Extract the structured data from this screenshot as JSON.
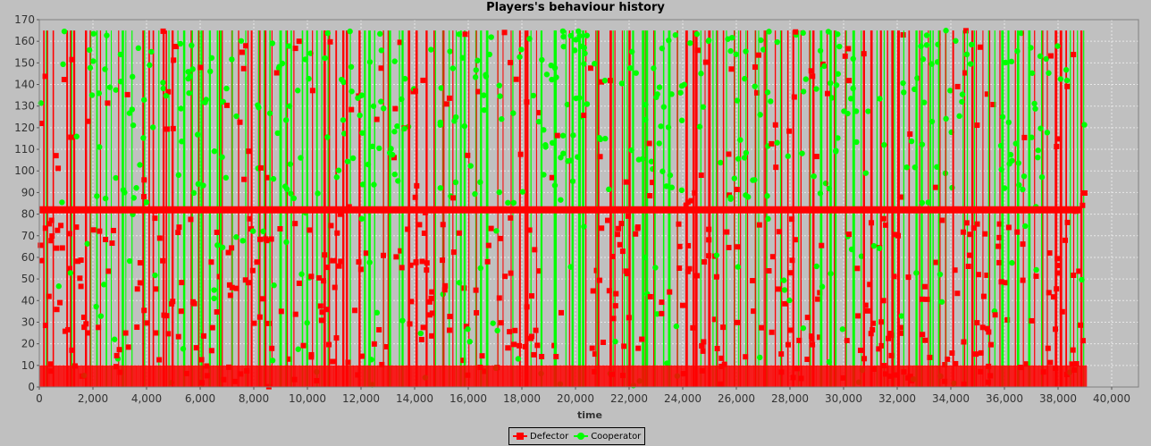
{
  "chart_data": {
    "type": "scatter",
    "title": "Players's behaviour history",
    "xlabel": "time",
    "ylabel": "",
    "xlim": [
      0,
      41000
    ],
    "ylim": [
      0,
      170
    ],
    "x_ticks": [
      0,
      2000,
      4000,
      6000,
      8000,
      10000,
      12000,
      14000,
      16000,
      18000,
      20000,
      22000,
      24000,
      26000,
      28000,
      30000,
      32000,
      34000,
      36000,
      38000,
      40000
    ],
    "x_tick_labels": [
      "0",
      "2,000",
      "4,000",
      "6,000",
      "8,000",
      "10,000",
      "12,000",
      "14,000",
      "16,000",
      "18,000",
      "20,000",
      "22,000",
      "24,000",
      "26,000",
      "28,000",
      "30,000",
      "32,000",
      "34,000",
      "36,000",
      "38,000",
      "40,000"
    ],
    "y_ticks": [
      0,
      10,
      20,
      30,
      40,
      50,
      60,
      70,
      80,
      90,
      100,
      110,
      120,
      130,
      140,
      150,
      160,
      170
    ],
    "y_tick_labels": [
      "0",
      "10",
      "20",
      "30",
      "40",
      "50",
      "60",
      "70",
      "80",
      "90",
      "100",
      "110",
      "120",
      "130",
      "140",
      "150",
      "160",
      "170"
    ],
    "grid": true,
    "legend_position": "bottom-center",
    "x_range_of_data": [
      0,
      38900
    ],
    "y_range_of_data": [
      0,
      165
    ],
    "constant_level_y": 82,
    "series": [
      {
        "name": "Defector",
        "color": "#ff0000",
        "marker": "square"
      },
      {
        "name": "Cooperator",
        "color": "#00ff00",
        "marker": "circle"
      }
    ]
  },
  "legend": {
    "defector_label": "Defector",
    "cooperator_label": "Cooperator"
  }
}
